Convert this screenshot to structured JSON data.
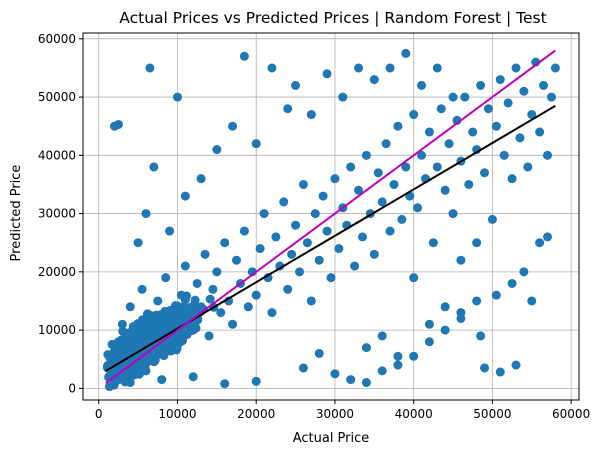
{
  "chart_data": {
    "type": "scatter",
    "title": "Actual Prices vs Predicted Prices | Random Forest | Test",
    "xlabel": "Actual Price",
    "ylabel": "Predicted Price",
    "xlim": [
      -2000,
      61000
    ],
    "ylim": [
      -2000,
      61000
    ],
    "xticks": [
      0,
      10000,
      20000,
      30000,
      40000,
      50000,
      60000
    ],
    "yticks": [
      0,
      10000,
      20000,
      30000,
      40000,
      50000,
      60000
    ],
    "xtick_labels": [
      "0",
      "10000",
      "20000",
      "30000",
      "40000",
      "50000",
      "60000"
    ],
    "ytick_labels": [
      "0",
      "10000",
      "20000",
      "30000",
      "40000",
      "50000",
      "60000"
    ],
    "grid": true,
    "colors": {
      "points": "#1f77b4",
      "fit_line": "#000000",
      "ideal_line": "#bf00bf"
    },
    "series": [
      {
        "kind": "points",
        "points": [
          [
            1500,
            2000
          ],
          [
            2000,
            5000
          ],
          [
            2500,
            8000
          ],
          [
            3000,
            11000
          ],
          [
            3500,
            4000
          ],
          [
            4000,
            14000
          ],
          [
            4500,
            7000
          ],
          [
            5000,
            10000
          ],
          [
            5500,
            17000
          ],
          [
            6000,
            3000
          ],
          [
            6500,
            12000
          ],
          [
            7000,
            9000
          ],
          [
            7500,
            15000
          ],
          [
            8000,
            6000
          ],
          [
            8500,
            19000
          ],
          [
            9000,
            11000
          ],
          [
            9500,
            13000
          ],
          [
            10000,
            8000
          ],
          [
            10500,
            16000
          ],
          [
            11000,
            21000
          ],
          [
            11500,
            12000
          ],
          [
            12000,
            10000
          ],
          [
            12500,
            18000
          ],
          [
            13000,
            14000
          ],
          [
            13500,
            23000
          ],
          [
            14000,
            9000
          ],
          [
            14500,
            17000
          ],
          [
            15000,
            20000
          ],
          [
            15500,
            13000
          ],
          [
            16000,
            25000
          ],
          [
            16500,
            15000
          ],
          [
            17000,
            11000
          ],
          [
            17500,
            22000
          ],
          [
            18000,
            18000
          ],
          [
            18500,
            27000
          ],
          [
            19000,
            14000
          ],
          [
            19500,
            20000
          ],
          [
            20000,
            16000
          ],
          [
            20500,
            24000
          ],
          [
            21000,
            30000
          ],
          [
            21500,
            19000
          ],
          [
            22000,
            13000
          ],
          [
            22500,
            26000
          ],
          [
            23000,
            21000
          ],
          [
            23500,
            32000
          ],
          [
            24000,
            17000
          ],
          [
            24500,
            23000
          ],
          [
            25000,
            28000
          ],
          [
            25500,
            20000
          ],
          [
            26000,
            35000
          ],
          [
            26500,
            25000
          ],
          [
            27000,
            15000
          ],
          [
            27500,
            30000
          ],
          [
            28000,
            22000
          ],
          [
            28500,
            33000
          ],
          [
            29000,
            27000
          ],
          [
            29500,
            19000
          ],
          [
            30000,
            36000
          ],
          [
            30500,
            24000
          ],
          [
            31000,
            31000
          ],
          [
            31500,
            28000
          ],
          [
            32000,
            38000
          ],
          [
            32500,
            21000
          ],
          [
            33000,
            34000
          ],
          [
            33500,
            26000
          ],
          [
            34000,
            40000
          ],
          [
            34500,
            30000
          ],
          [
            35000,
            23000
          ],
          [
            35500,
            37000
          ],
          [
            36000,
            32000
          ],
          [
            36500,
            42000
          ],
          [
            37000,
            27000
          ],
          [
            37500,
            35000
          ],
          [
            38000,
            45000
          ],
          [
            38500,
            29000
          ],
          [
            39000,
            38000
          ],
          [
            39500,
            33000
          ],
          [
            40000,
            47000
          ],
          [
            40500,
            31000
          ],
          [
            41000,
            40000
          ],
          [
            41500,
            36000
          ],
          [
            42000,
            44000
          ],
          [
            42500,
            25000
          ],
          [
            43000,
            38000
          ],
          [
            43500,
            48000
          ],
          [
            44000,
            34000
          ],
          [
            44500,
            42000
          ],
          [
            45000,
            30000
          ],
          [
            45500,
            46000
          ],
          [
            46000,
            39000
          ],
          [
            46500,
            50000
          ],
          [
            47000,
            35000
          ],
          [
            47500,
            44000
          ],
          [
            48000,
            41000
          ],
          [
            48500,
            52000
          ],
          [
            49000,
            37000
          ],
          [
            49500,
            48000
          ],
          [
            50000,
            29000
          ],
          [
            50500,
            45000
          ],
          [
            51000,
            53000
          ],
          [
            51500,
            40000
          ],
          [
            52000,
            49000
          ],
          [
            52500,
            36000
          ],
          [
            53000,
            55000
          ],
          [
            53500,
            43000
          ],
          [
            54000,
            51000
          ],
          [
            54500,
            38000
          ],
          [
            55000,
            47000
          ],
          [
            55500,
            56000
          ],
          [
            56000,
            44000
          ],
          [
            56500,
            52000
          ],
          [
            57000,
            40000
          ],
          [
            57500,
            50000
          ],
          [
            58000,
            55000
          ],
          [
            5000,
            25000
          ],
          [
            6000,
            30000
          ],
          [
            7000,
            38000
          ],
          [
            9000,
            27000
          ],
          [
            11000,
            33000
          ],
          [
            13000,
            36000
          ],
          [
            15000,
            41000
          ],
          [
            17000,
            45000
          ],
          [
            18500,
            57000
          ],
          [
            20000,
            42000
          ],
          [
            22000,
            55000
          ],
          [
            24000,
            48000
          ],
          [
            25000,
            52000
          ],
          [
            27000,
            47000
          ],
          [
            29000,
            54000
          ],
          [
            31000,
            50000
          ],
          [
            33000,
            55000
          ],
          [
            35000,
            53000
          ],
          [
            37000,
            55000
          ],
          [
            39000,
            57500
          ],
          [
            41000,
            52000
          ],
          [
            43000,
            55000
          ],
          [
            45000,
            50000
          ],
          [
            2000,
            45000
          ],
          [
            2500,
            45300
          ],
          [
            6500,
            55000
          ],
          [
            10000,
            50000
          ],
          [
            4000,
            1000
          ],
          [
            8000,
            1500
          ],
          [
            12000,
            2000
          ],
          [
            16000,
            800
          ],
          [
            20000,
            1200
          ],
          [
            26000,
            3500
          ],
          [
            30000,
            2500
          ],
          [
            32000,
            1500
          ],
          [
            34000,
            1000
          ],
          [
            36000,
            3000
          ],
          [
            38000,
            4000
          ],
          [
            40000,
            5500
          ],
          [
            42000,
            8000
          ],
          [
            44000,
            10000
          ],
          [
            46000,
            12000
          ],
          [
            48000,
            15000
          ],
          [
            49000,
            3500
          ],
          [
            51000,
            2800
          ],
          [
            52500,
            18000
          ],
          [
            53000,
            4000
          ],
          [
            54000,
            20000
          ],
          [
            55000,
            15000
          ],
          [
            56000,
            25000
          ],
          [
            57000,
            26000
          ],
          [
            46000,
            13000
          ],
          [
            48500,
            9000
          ],
          [
            50500,
            16000
          ],
          [
            38000,
            5500
          ],
          [
            34000,
            7000
          ],
          [
            28000,
            6000
          ],
          [
            36000,
            9000
          ],
          [
            42000,
            11000
          ],
          [
            44000,
            14000
          ],
          [
            40000,
            19000
          ],
          [
            46000,
            22000
          ],
          [
            48000,
            25000
          ]
        ],
        "cluster": {
          "x_range": [
            800,
            35000
          ],
          "y_range": [
            300,
            42000
          ],
          "density_center": [
            10000,
            12000
          ]
        }
      },
      {
        "kind": "line",
        "points": [
          [
            900,
            3000
          ],
          [
            58000,
            48500
          ]
        ]
      },
      {
        "kind": "line",
        "points": [
          [
            900,
            900
          ],
          [
            58000,
            58000
          ]
        ]
      }
    ]
  }
}
